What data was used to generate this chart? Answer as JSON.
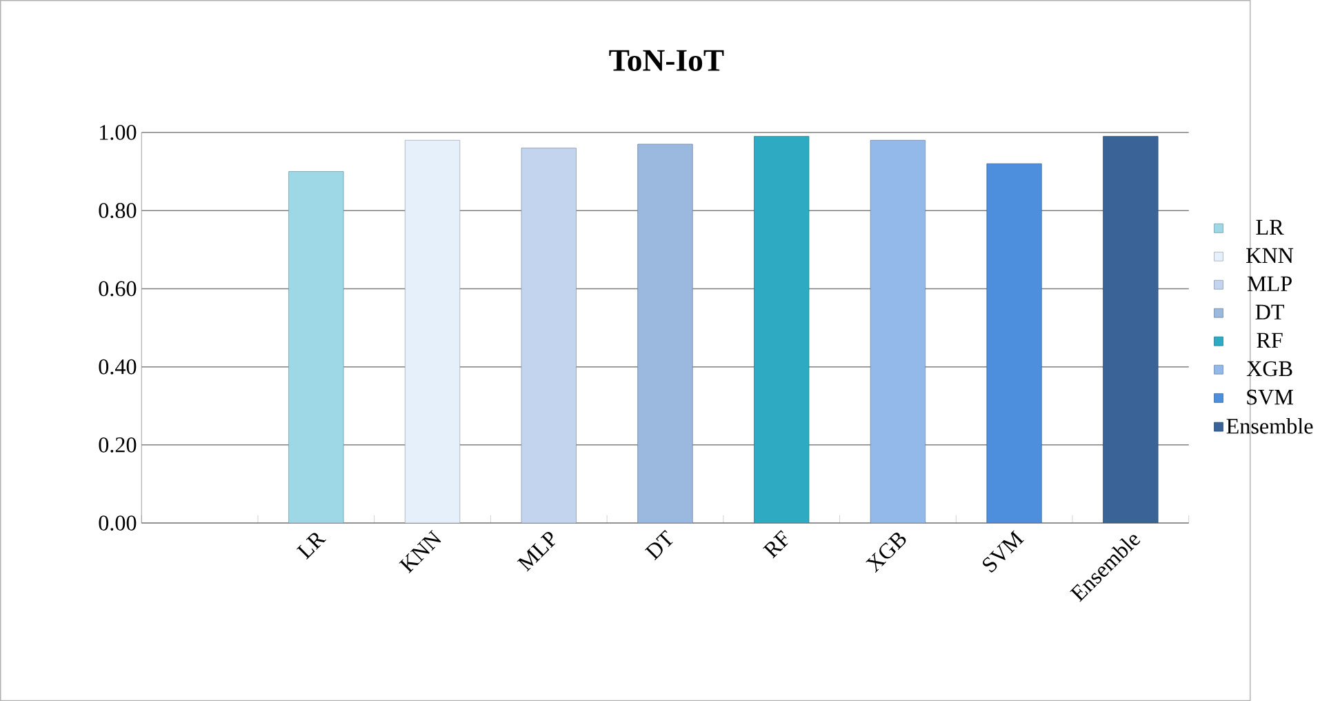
{
  "chart_data": {
    "type": "bar",
    "title": "ToN-IoT",
    "categories": [
      null,
      "LR",
      "KNN",
      "MLP",
      "DT",
      "RF",
      "XGB",
      "SVM",
      "Ensemble"
    ],
    "series": [
      {
        "name": "LR",
        "color": "#9ed8e6",
        "values": [
          null,
          0.9,
          null,
          null,
          null,
          null,
          null,
          null,
          null
        ]
      },
      {
        "name": "KNN",
        "color": "#e6f0fb",
        "values": [
          null,
          null,
          0.98,
          null,
          null,
          null,
          null,
          null,
          null
        ]
      },
      {
        "name": "MLP",
        "color": "#c3d5ee",
        "values": [
          null,
          null,
          null,
          0.96,
          null,
          null,
          null,
          null,
          null
        ]
      },
      {
        "name": "DT",
        "color": "#9bb8de",
        "values": [
          null,
          null,
          null,
          null,
          0.97,
          null,
          null,
          null,
          null
        ]
      },
      {
        "name": "RF",
        "color": "#2eaac3",
        "values": [
          null,
          null,
          null,
          null,
          null,
          0.99,
          null,
          null,
          null
        ]
      },
      {
        "name": "XGB",
        "color": "#92b9ea",
        "values": [
          null,
          null,
          null,
          null,
          null,
          null,
          0.98,
          null,
          null
        ]
      },
      {
        "name": "SVM",
        "color": "#4d8fdc",
        "values": [
          null,
          null,
          null,
          null,
          null,
          null,
          null,
          0.92,
          null
        ]
      },
      {
        "name": "Ensemble",
        "color": "#3a6497",
        "values": [
          null,
          null,
          null,
          null,
          null,
          null,
          null,
          null,
          0.99
        ]
      }
    ],
    "ylim": [
      0,
      1
    ],
    "yticks": [
      {
        "value": 0,
        "label": "0.00"
      },
      {
        "value": 0.2,
        "label": "0.20"
      },
      {
        "value": 0.4,
        "label": "0.40"
      },
      {
        "value": 0.6,
        "label": "0.60"
      },
      {
        "value": 0.8,
        "label": "0.80"
      },
      {
        "value": 1,
        "label": "1.00"
      }
    ],
    "grid": "y",
    "legend": "right"
  }
}
